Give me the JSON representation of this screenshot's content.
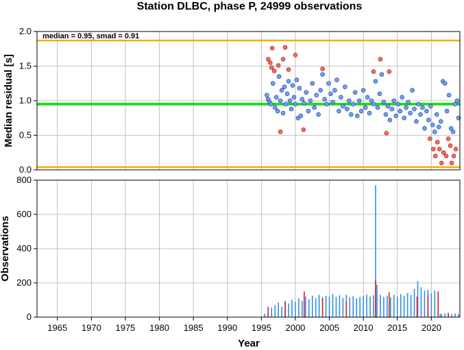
{
  "chart_data": [
    {
      "type": "scatter",
      "title": "Station DLBC, phase P, 24999 observations",
      "ylabel": "Median residual [s]",
      "xlim": [
        1962,
        2024.2
      ],
      "ylim": [
        0,
        2
      ],
      "yticks": [
        "0.0",
        "0.5",
        "1.0",
        "1.5",
        "2.0"
      ],
      "grid": true,
      "annotation": "median = 0.95, smad = 0.91",
      "reference_lines": [
        {
          "y": 0.95,
          "color": "#22dd22"
        },
        {
          "y": 1.87,
          "color": "#ffaa00"
        },
        {
          "y": 0.04,
          "color": "#ffaa00"
        }
      ],
      "colors": {
        "normal": "#6f9ff2",
        "outlier": "#f26b5e",
        "edge": "#1a3a9a"
      },
      "outlier_points": [
        [
          1996.0,
          1.6
        ],
        [
          1996.3,
          1.55
        ],
        [
          1996.5,
          1.48
        ],
        [
          1996.6,
          1.76
        ],
        [
          1996.9,
          1.43
        ],
        [
          1997.5,
          1.51
        ],
        [
          1997.8,
          0.55
        ],
        [
          1998.2,
          1.6
        ],
        [
          1998.5,
          1.77
        ],
        [
          1999.0,
          1.45
        ],
        [
          2000.0,
          1.66
        ],
        [
          2001.2,
          0.58
        ],
        [
          2004.0,
          1.46
        ],
        [
          2011.5,
          1.42
        ],
        [
          2012.5,
          1.6
        ],
        [
          2013.4,
          0.53
        ],
        [
          2013.8,
          1.42
        ],
        [
          2019.8,
          0.45
        ],
        [
          2020.3,
          0.3
        ],
        [
          2020.6,
          0.2
        ],
        [
          2020.9,
          0.4
        ],
        [
          2021.2,
          0.3
        ],
        [
          2021.5,
          0.1
        ],
        [
          2021.8,
          0.25
        ],
        [
          2022.2,
          0.2
        ],
        [
          2022.5,
          0.45
        ],
        [
          2022.8,
          0.35
        ],
        [
          2023.0,
          0.1
        ],
        [
          2023.3,
          0.2
        ],
        [
          2023.6,
          0.3
        ]
      ],
      "normal_points": [
        [
          1995.8,
          1.08
        ],
        [
          1996.0,
          1.02
        ],
        [
          1996.2,
          0.98
        ],
        [
          1996.4,
          0.95
        ],
        [
          1996.7,
          1.25
        ],
        [
          1997.0,
          0.9
        ],
        [
          1997.2,
          1.05
        ],
        [
          1997.4,
          0.85
        ],
        [
          1997.6,
          1.35
        ],
        [
          1997.8,
          1.0
        ],
        [
          1998.0,
          1.15
        ],
        [
          1998.2,
          0.82
        ],
        [
          1998.4,
          1.2
        ],
        [
          1998.6,
          0.95
        ],
        [
          1998.8,
          1.1
        ],
        [
          1999.0,
          1.28
        ],
        [
          1999.2,
          1.0
        ],
        [
          1999.4,
          0.88
        ],
        [
          1999.6,
          1.22
        ],
        [
          1999.8,
          1.05
        ],
        [
          2000.0,
          0.95
        ],
        [
          2000.2,
          1.3
        ],
        [
          2000.4,
          0.75
        ],
        [
          2000.6,
          1.18
        ],
        [
          2000.8,
          0.78
        ],
        [
          2001.0,
          1.02
        ],
        [
          2001.3,
          0.96
        ],
        [
          2001.6,
          1.12
        ],
        [
          2001.9,
          0.85
        ],
        [
          2002.2,
          1.0
        ],
        [
          2002.5,
          1.25
        ],
        [
          2002.8,
          0.9
        ],
        [
          2003.1,
          1.08
        ],
        [
          2003.4,
          0.8
        ],
        [
          2003.7,
          1.15
        ],
        [
          2004.0,
          1.38
        ],
        [
          2004.3,
          1.02
        ],
        [
          2004.6,
          0.95
        ],
        [
          2004.9,
          1.25
        ],
        [
          2005.2,
          1.1
        ],
        [
          2005.5,
          0.98
        ],
        [
          2005.8,
          1.15
        ],
        [
          2006.1,
          1.3
        ],
        [
          2006.4,
          0.85
        ],
        [
          2006.7,
          1.05
        ],
        [
          2007.0,
          0.92
        ],
        [
          2007.3,
          1.2
        ],
        [
          2007.6,
          0.88
        ],
        [
          2007.9,
          1.0
        ],
        [
          2008.2,
          0.8
        ],
        [
          2008.5,
          0.95
        ],
        [
          2008.8,
          1.12
        ],
        [
          2009.1,
          0.78
        ],
        [
          2009.4,
          1.0
        ],
        [
          2009.7,
          0.85
        ],
        [
          2010.0,
          1.15
        ],
        [
          2010.3,
          0.9
        ],
        [
          2010.6,
          1.05
        ],
        [
          2010.9,
          0.82
        ],
        [
          2011.2,
          1.0
        ],
        [
          2011.5,
          0.95
        ],
        [
          2011.8,
          1.28
        ],
        [
          2012.1,
          0.9
        ],
        [
          2012.4,
          1.1
        ],
        [
          2012.7,
          1.38
        ],
        [
          2013.0,
          0.98
        ],
        [
          2013.3,
          0.8
        ],
        [
          2013.6,
          0.92
        ],
        [
          2013.9,
          0.72
        ],
        [
          2014.2,
          0.88
        ],
        [
          2014.5,
          1.0
        ],
        [
          2014.8,
          0.78
        ],
        [
          2015.1,
          0.95
        ],
        [
          2015.4,
          0.85
        ],
        [
          2015.7,
          1.05
        ],
        [
          2016.0,
          0.75
        ],
        [
          2016.3,
          0.9
        ],
        [
          2016.6,
          0.98
        ],
        [
          2016.9,
          0.82
        ],
        [
          2017.2,
          1.15
        ],
        [
          2017.5,
          0.88
        ],
        [
          2017.8,
          0.7
        ],
        [
          2018.1,
          0.95
        ],
        [
          2018.4,
          0.8
        ],
        [
          2018.7,
          0.9
        ],
        [
          2019.0,
          0.6
        ],
        [
          2019.3,
          0.85
        ],
        [
          2019.6,
          0.72
        ],
        [
          2019.9,
          0.92
        ],
        [
          2020.2,
          0.65
        ],
        [
          2020.5,
          0.55
        ],
        [
          2020.8,
          0.8
        ],
        [
          2021.1,
          0.62
        ],
        [
          2021.4,
          0.7
        ],
        [
          2021.7,
          1.28
        ],
        [
          2022.0,
          1.25
        ],
        [
          2022.3,
          0.85
        ],
        [
          2022.6,
          1.08
        ],
        [
          2022.9,
          0.6
        ],
        [
          2023.2,
          0.55
        ],
        [
          2023.5,
          0.95
        ],
        [
          2023.8,
          1.0
        ],
        [
          2024.0,
          0.75
        ]
      ]
    },
    {
      "type": "bar",
      "xlabel": "Year",
      "ylabel": "Observations",
      "xlim": [
        1962,
        2024.2
      ],
      "ylim": [
        0,
        800
      ],
      "xticks": [
        "1965",
        "1970",
        "1975",
        "1980",
        "1985",
        "1990",
        "1995",
        "2000",
        "2005",
        "2010",
        "2015",
        "2020"
      ],
      "yticks": [
        "0",
        "200",
        "400",
        "600",
        "800"
      ],
      "grid": true,
      "colors": {
        "bars": "#2e8ee8",
        "outlier_bars": "#dd2222"
      },
      "bar_series": [
        [
          1995.5,
          20
        ],
        [
          1996.0,
          45
        ],
        [
          1996.5,
          55
        ],
        [
          1997.0,
          70
        ],
        [
          1997.5,
          85
        ],
        [
          1998.0,
          60
        ],
        [
          1998.5,
          95
        ],
        [
          1999.0,
          80
        ],
        [
          1999.5,
          100
        ],
        [
          2000.0,
          90
        ],
        [
          2000.5,
          110
        ],
        [
          2001.0,
          95
        ],
        [
          2001.5,
          120
        ],
        [
          2002.0,
          105
        ],
        [
          2002.5,
          125
        ],
        [
          2003.0,
          110
        ],
        [
          2003.5,
          130
        ],
        [
          2004.0,
          115
        ],
        [
          2004.5,
          125
        ],
        [
          2005.0,
          120
        ],
        [
          2005.5,
          135
        ],
        [
          2006.0,
          118
        ],
        [
          2006.5,
          128
        ],
        [
          2007.0,
          112
        ],
        [
          2007.5,
          130
        ],
        [
          2008.0,
          115
        ],
        [
          2008.5,
          122
        ],
        [
          2009.0,
          110
        ],
        [
          2009.5,
          118
        ],
        [
          2010.0,
          125
        ],
        [
          2010.5,
          132
        ],
        [
          2011.0,
          120
        ],
        [
          2011.5,
          128
        ],
        [
          2011.8,
          770
        ],
        [
          2012.0,
          190
        ],
        [
          2012.5,
          130
        ],
        [
          2013.0,
          118
        ],
        [
          2013.5,
          125
        ],
        [
          2014.0,
          115
        ],
        [
          2014.5,
          130
        ],
        [
          2015.0,
          120
        ],
        [
          2015.5,
          135
        ],
        [
          2016.0,
          125
        ],
        [
          2016.5,
          140
        ],
        [
          2017.0,
          130
        ],
        [
          2017.5,
          165
        ],
        [
          2018.0,
          210
        ],
        [
          2018.5,
          175
        ],
        [
          2019.0,
          155
        ],
        [
          2019.5,
          160
        ],
        [
          2020.0,
          140
        ],
        [
          2020.5,
          155
        ],
        [
          2021.0,
          145
        ],
        [
          2021.3,
          20
        ],
        [
          2021.5,
          18
        ],
        [
          2022.0,
          22
        ],
        [
          2022.5,
          20
        ],
        [
          2023.0,
          18
        ],
        [
          2023.5,
          20
        ],
        [
          2024.0,
          18
        ]
      ],
      "outlier_bar_series": [
        [
          1996.0,
          60
        ],
        [
          1998.5,
          90
        ],
        [
          2001.3,
          150
        ],
        [
          2004.0,
          110
        ],
        [
          2007.5,
          90
        ],
        [
          2011.8,
          215
        ],
        [
          2013.8,
          145
        ],
        [
          2017.9,
          120
        ],
        [
          2019.5,
          130
        ],
        [
          2021.0,
          150
        ],
        [
          2022.5,
          25
        ]
      ]
    }
  ]
}
